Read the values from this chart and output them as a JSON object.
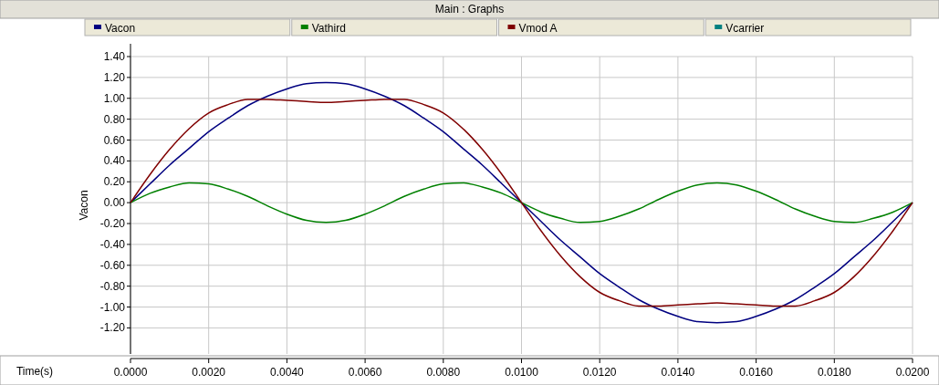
{
  "chart_data": {
    "type": "line",
    "title": "Main : Graphs",
    "ylabel": "Vacon",
    "xlabel": "Time(s)",
    "x": [
      0,
      0.0005,
      0.001,
      0.0015,
      0.002,
      0.0025,
      0.003,
      0.0035,
      0.004,
      0.0045,
      0.005,
      0.0055,
      0.006,
      0.0065,
      0.007,
      0.0075,
      0.008,
      0.0085,
      0.009,
      0.0095,
      0.01,
      0.0105,
      0.011,
      0.0115,
      0.012,
      0.0125,
      0.013,
      0.0135,
      0.014,
      0.0145,
      0.015,
      0.0155,
      0.016,
      0.0165,
      0.017,
      0.0175,
      0.018,
      0.0185,
      0.019,
      0.0195,
      0.02
    ],
    "series": [
      {
        "name": "Vacon",
        "color": "#000080",
        "values": [
          0,
          0.18,
          0.36,
          0.52,
          0.68,
          0.81,
          0.93,
          1.02,
          1.09,
          1.14,
          1.15,
          1.14,
          1.09,
          1.02,
          0.93,
          0.81,
          0.68,
          0.52,
          0.36,
          0.18,
          0,
          -0.18,
          -0.36,
          -0.52,
          -0.68,
          -0.81,
          -0.93,
          -1.02,
          -1.09,
          -1.14,
          -1.15,
          -1.14,
          -1.09,
          -1.02,
          -0.93,
          -0.81,
          -0.68,
          -0.52,
          -0.36,
          -0.18,
          0
        ]
      },
      {
        "name": "Vathird",
        "color": "#008000",
        "values": [
          0,
          0.09,
          0.15,
          0.19,
          0.18,
          0.13,
          0.06,
          -0.03,
          -0.11,
          -0.17,
          -0.19,
          -0.17,
          -0.11,
          -0.03,
          0.06,
          0.13,
          0.18,
          0.19,
          0.15,
          0.09,
          0,
          -0.09,
          -0.15,
          -0.19,
          -0.18,
          -0.13,
          -0.06,
          0.03,
          0.11,
          0.17,
          0.19,
          0.17,
          0.11,
          0.03,
          -0.06,
          -0.13,
          -0.18,
          -0.19,
          -0.15,
          -0.09,
          0
        ]
      },
      {
        "name": "Vmod A",
        "color": "#800000",
        "values": [
          0,
          0.27,
          0.51,
          0.71,
          0.86,
          0.94,
          0.99,
          0.99,
          0.98,
          0.97,
          0.96,
          0.97,
          0.98,
          0.99,
          0.99,
          0.94,
          0.86,
          0.71,
          0.51,
          0.27,
          0,
          -0.27,
          -0.51,
          -0.71,
          -0.86,
          -0.94,
          -0.99,
          -0.99,
          -0.98,
          -0.97,
          -0.96,
          -0.97,
          -0.98,
          -0.99,
          -0.99,
          -0.94,
          -0.86,
          -0.71,
          -0.51,
          -0.27,
          0
        ]
      },
      {
        "name": "Vcarrier",
        "color": "#008080",
        "values": [
          null,
          null,
          null,
          null,
          null,
          null,
          null,
          null,
          null,
          null,
          null,
          null,
          null,
          null,
          null,
          null,
          null,
          null,
          null,
          null,
          null,
          null,
          null,
          null,
          null,
          null,
          null,
          null,
          null,
          null,
          null,
          null,
          null,
          null,
          null,
          null,
          null,
          null,
          null,
          null,
          null
        ]
      }
    ],
    "xlim": [
      0,
      0.02
    ],
    "xticks": [
      {
        "value": 0,
        "label": "0.0000"
      },
      {
        "value": 0.002,
        "label": "0.0020"
      },
      {
        "value": 0.004,
        "label": "0.0040"
      },
      {
        "value": 0.006,
        "label": "0.0060"
      },
      {
        "value": 0.008,
        "label": "0.0080"
      },
      {
        "value": 0.01,
        "label": "0.0100"
      },
      {
        "value": 0.012,
        "label": "0.0120"
      },
      {
        "value": 0.014,
        "label": "0.0140"
      },
      {
        "value": 0.016,
        "label": "0.0160"
      },
      {
        "value": 0.018,
        "label": "0.0180"
      },
      {
        "value": 0.02,
        "label": "0.0200"
      }
    ],
    "ylim": [
      -1.45,
      1.4
    ],
    "yticks": [
      {
        "value": -1.2,
        "label": "-1.20"
      },
      {
        "value": -1,
        "label": "-1.00"
      },
      {
        "value": -0.8,
        "label": "-0.80"
      },
      {
        "value": -0.6,
        "label": "-0.60"
      },
      {
        "value": -0.4,
        "label": "-0.40"
      },
      {
        "value": -0.2,
        "label": "-0.20"
      },
      {
        "value": 0,
        "label": "0.00"
      },
      {
        "value": 0.2,
        "label": "0.20"
      },
      {
        "value": 0.4,
        "label": "0.40"
      },
      {
        "value": 0.6,
        "label": "0.60"
      },
      {
        "value": 0.8,
        "label": "0.80"
      },
      {
        "value": 1,
        "label": "1.00"
      },
      {
        "value": 1.2,
        "label": "1.20"
      },
      {
        "value": 1.4,
        "label": "1.40"
      }
    ],
    "grid": true,
    "legend": "top"
  }
}
